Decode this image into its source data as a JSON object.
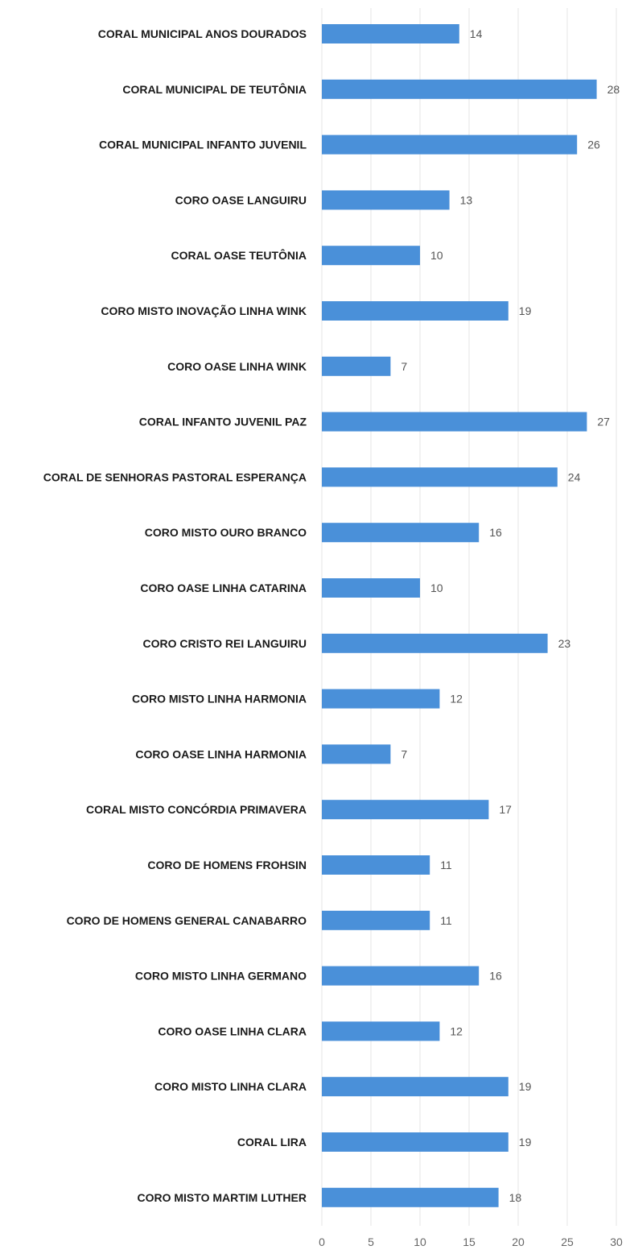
{
  "chart_data": {
    "type": "bar",
    "orientation": "horizontal",
    "categories": [
      "CORAL MUNICIPAL ANOS DOURADOS",
      "CORAL MUNICIPAL DE TEUTÔNIA",
      "CORAL MUNICIPAL INFANTO JUVENIL",
      "CORO OASE LANGUIRU",
      "CORAL OASE TEUTÔNIA",
      "CORO MISTO INOVAÇÃO LINHA WINK",
      "CORO OASE LINHA WINK",
      "CORAL INFANTO JUVENIL PAZ",
      "CORAL DE SENHORAS PASTORAL ESPERANÇA",
      "CORO MISTO OURO BRANCO",
      "CORO OASE LINHA CATARINA",
      "CORO CRISTO REI LANGUIRU",
      "CORO MISTO LINHA HARMONIA",
      "CORO OASE LINHA HARMONIA",
      "CORAL MISTO CONCÓRDIA PRIMAVERA",
      "CORO DE HOMENS FROHSIN",
      "CORO DE HOMENS GENERAL CANABARRO",
      "CORO MISTO LINHA GERMANO",
      "CORO OASE LINHA CLARA",
      "CORO MISTO LINHA CLARA",
      "CORAL LIRA",
      "CORO MISTO MARTIM LUTHER"
    ],
    "values": [
      14,
      28,
      26,
      13,
      10,
      19,
      7,
      27,
      24,
      16,
      10,
      23,
      12,
      7,
      17,
      11,
      11,
      16,
      12,
      19,
      19,
      18
    ],
    "xlim": [
      0,
      30
    ],
    "xticks": [
      "0",
      "5",
      "10",
      "15",
      "20",
      "25",
      "30"
    ],
    "grid": true,
    "bar_color": "#4a90d9",
    "title": "",
    "xlabel": "",
    "ylabel": ""
  }
}
